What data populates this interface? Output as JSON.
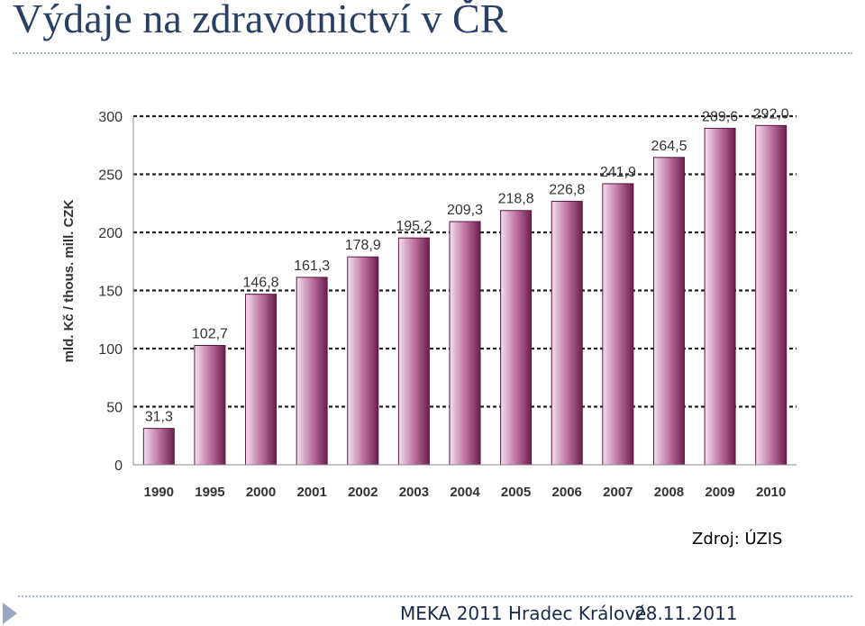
{
  "slide": {
    "title": "Výdaje na zdravotnictví v ČR",
    "source": "Zdroj: ÚZIS"
  },
  "footer": {
    "event": "MEKA 2011 Hradec Králové",
    "date": "28.11.2011"
  },
  "colors": {
    "title": "#2a3f66",
    "bar_dark": "#6b1d4b",
    "bar_light": "#f4dfee",
    "accent_rule": "#a9b7cf"
  },
  "chart_data": {
    "type": "bar",
    "title": "",
    "xlabel": "",
    "ylabel": "mld. Kč / thous. mill. CZK",
    "ylim": [
      0,
      300
    ],
    "yticks": [
      0,
      50,
      100,
      150,
      200,
      250,
      300
    ],
    "grid": true,
    "categories": [
      "1990",
      "1995",
      "2000",
      "2001",
      "2002",
      "2003",
      "2004",
      "2005",
      "2006",
      "2007",
      "2008",
      "2009",
      "2010"
    ],
    "values": [
      31.3,
      102.7,
      146.8,
      161.3,
      178.9,
      195.2,
      209.3,
      218.8,
      226.8,
      241.9,
      264.5,
      289.6,
      292.0
    ],
    "value_labels": [
      "31,3",
      "102,7",
      "146,8",
      "161,3",
      "178,9",
      "195,2",
      "209,3",
      "218,8",
      "226,8",
      "241,9",
      "264,5",
      "289,6",
      "292,0"
    ]
  }
}
